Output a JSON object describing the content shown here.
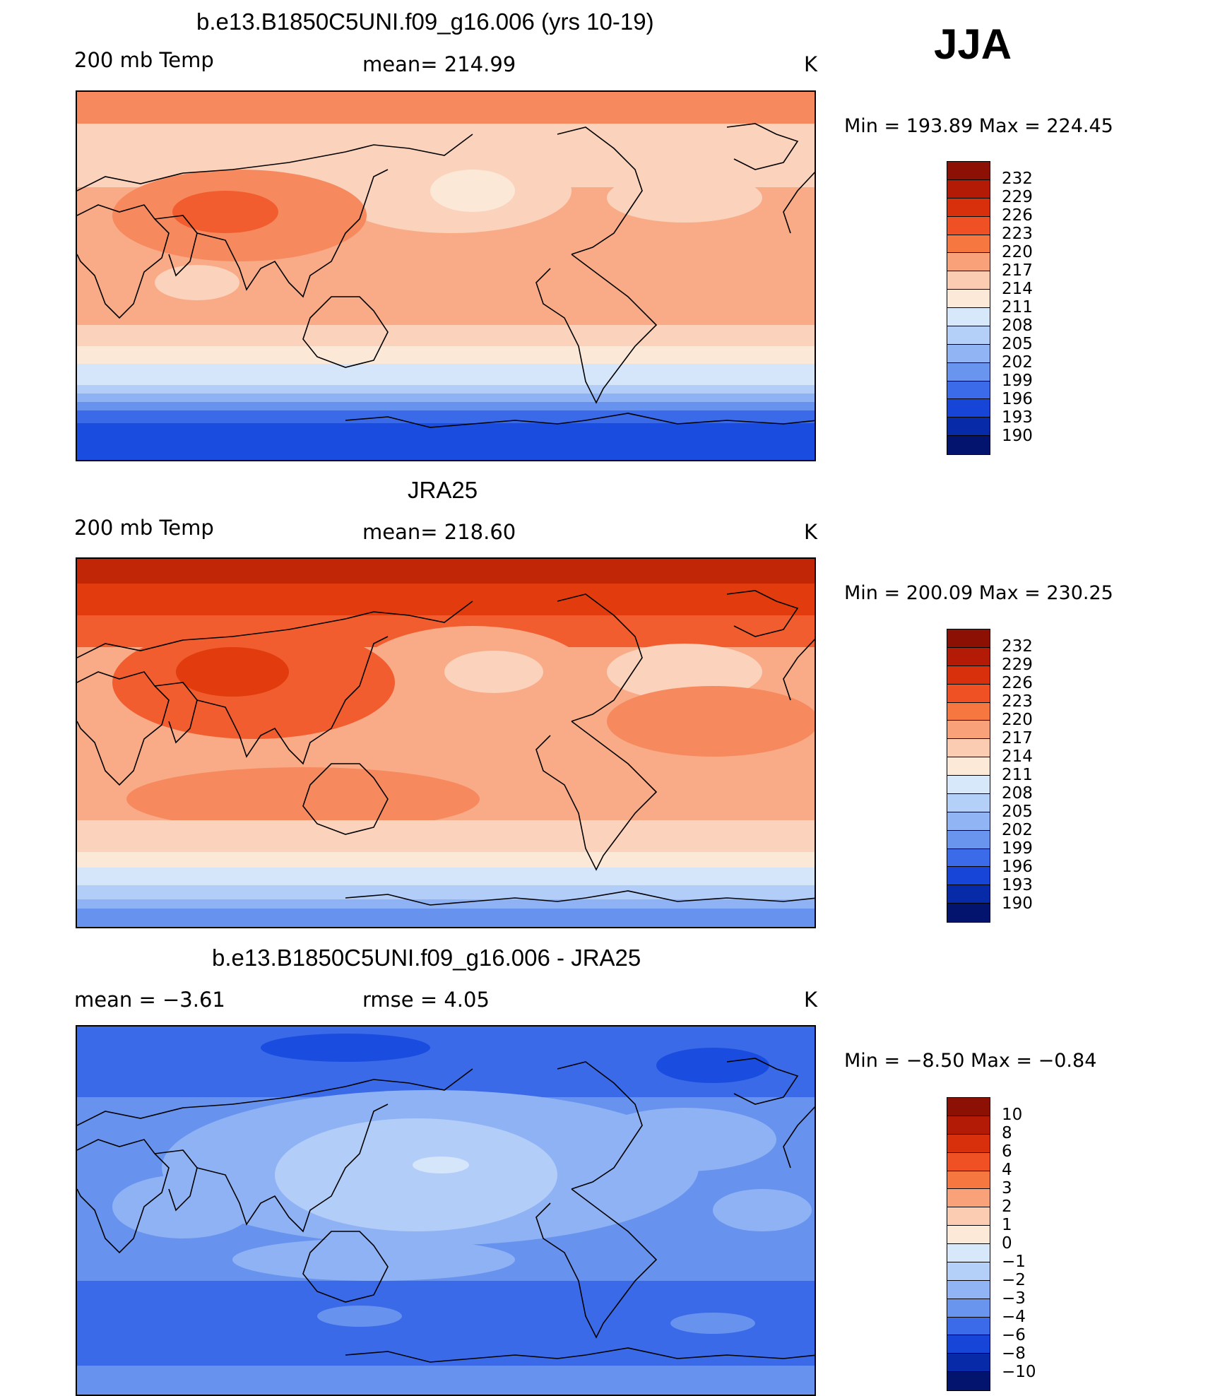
{
  "season": "JJA",
  "colors": {
    "temp_scale": [
      "#fbe8d7",
      "#fbd2bb",
      "#f9ab87",
      "#f6895e",
      "#f15d2f",
      "#e13b0e",
      "#c12706",
      "#8c1003"
    ],
    "cool_scale": [
      "#d5e6fa",
      "#b2cdf8",
      "#8eb2f4",
      "#6793ef",
      "#3a6ae8",
      "#1a4ce0",
      "#0d31c8",
      "#061c98",
      "#020a60"
    ],
    "land": "#000000"
  },
  "chart_data": [
    {
      "type": "heatmap",
      "title": "b.e13.B1850C5UNI.f09_g16.006 (yrs 10-19)",
      "left_label": "200 mb Temp",
      "stat_label": "mean= 214.99",
      "unit": "K",
      "min_max": "Min = 193.89 Max = 224.45",
      "levels": [
        "232",
        "229",
        "226",
        "223",
        "220",
        "217",
        "214",
        "211",
        "208",
        "205",
        "202",
        "199",
        "196",
        "193",
        "190"
      ],
      "level_colors": [
        "#8c1003",
        "#b31b06",
        "#d8300c",
        "#ef5024",
        "#f6773f",
        "#f9a27a",
        "#fbcbb2",
        "#fde9d7",
        "#d7e8fb",
        "#b5d0f8",
        "#90b4f4",
        "#6a95ef",
        "#3b6be8",
        "#1745d7",
        "#062aa8",
        "#02146e"
      ]
    },
    {
      "type": "heatmap",
      "title": "JRA25",
      "left_label": "200 mb Temp",
      "stat_label": "mean= 218.60",
      "unit": "K",
      "min_max": "Min = 200.09 Max = 230.25",
      "levels": [
        "232",
        "229",
        "226",
        "223",
        "220",
        "217",
        "214",
        "211",
        "208",
        "205",
        "202",
        "199",
        "196",
        "193",
        "190"
      ],
      "level_colors": [
        "#8c1003",
        "#b31b06",
        "#d8300c",
        "#ef5024",
        "#f6773f",
        "#f9a27a",
        "#fbcbb2",
        "#fde9d7",
        "#d7e8fb",
        "#b5d0f8",
        "#90b4f4",
        "#6a95ef",
        "#3b6be8",
        "#1745d7",
        "#062aa8",
        "#02146e"
      ]
    },
    {
      "type": "heatmap",
      "title": "b.e13.B1850C5UNI.f09_g16.006 - JRA25",
      "left_label": "mean =   −3.61",
      "stat_label": "rmse =    4.05",
      "unit": "K",
      "min_max": "Min =   −8.50 Max =   −0.84",
      "levels": [
        "10",
        "8",
        "6",
        "4",
        "3",
        "2",
        "1",
        "0",
        "−1",
        "−2",
        "−3",
        "−4",
        "−6",
        "−8",
        "−10"
      ],
      "level_colors": [
        "#8c1003",
        "#b31b06",
        "#d8300c",
        "#ef5024",
        "#f6773f",
        "#f9a27a",
        "#fbcbb2",
        "#fde9d7",
        "#d7e8fb",
        "#b5d0f8",
        "#90b4f4",
        "#6a95ef",
        "#3b6be8",
        "#1745d7",
        "#062aa8",
        "#02146e"
      ]
    }
  ]
}
